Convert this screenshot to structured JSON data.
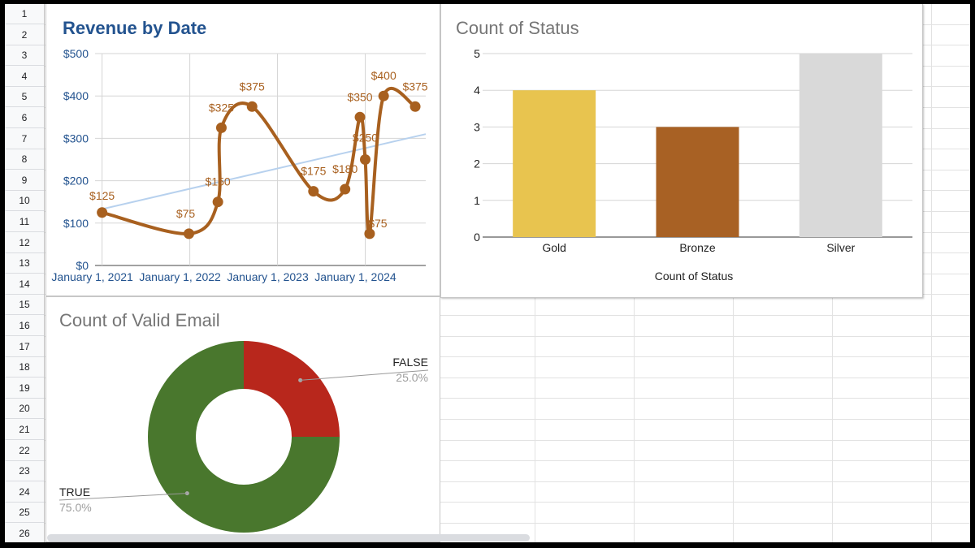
{
  "rows": [
    "1",
    "2",
    "3",
    "4",
    "5",
    "6",
    "7",
    "8",
    "9",
    "10",
    "11",
    "12",
    "13",
    "14",
    "15",
    "16",
    "17",
    "18",
    "19",
    "20",
    "21",
    "22",
    "23",
    "24",
    "25",
    "26"
  ],
  "revenue_chart": {
    "title": "Revenue by Date",
    "chart_data": {
      "type": "line",
      "title": "Revenue by Date",
      "xlabel": "",
      "ylabel": "",
      "x_tick_labels": [
        "January 1, 2021",
        "January 1, 2022",
        "January 1, 2023",
        "January 1, 2024"
      ],
      "y_tick_labels": [
        "$0",
        "$100",
        "$200",
        "$300",
        "$400",
        "$500"
      ],
      "ylim": [
        0,
        500
      ],
      "xlim_years": [
        2020.92,
        2024.69
      ],
      "series": [
        {
          "name": "Revenue",
          "color": "#a8601f",
          "points": [
            {
              "x": 2021.0,
              "y": 125,
              "label": "$125"
            },
            {
              "x": 2021.99,
              "y": 75,
              "label": "$75"
            },
            {
              "x": 2022.32,
              "y": 150,
              "label": "$150"
            },
            {
              "x": 2022.36,
              "y": 325,
              "label": "$325"
            },
            {
              "x": 2022.71,
              "y": 375,
              "label": "$375"
            },
            {
              "x": 2023.41,
              "y": 175,
              "label": "$175"
            },
            {
              "x": 2023.77,
              "y": 180,
              "label": "$180"
            },
            {
              "x": 2023.94,
              "y": 350,
              "label": "$350"
            },
            {
              "x": 2024.0,
              "y": 250,
              "label": "$250"
            },
            {
              "x": 2024.05,
              "y": 75,
              "label": "$75"
            },
            {
              "x": 2024.21,
              "y": 400,
              "label": "$400"
            },
            {
              "x": 2024.57,
              "y": 375,
              "label": "$375"
            }
          ]
        },
        {
          "name": "Trendline",
          "color": "#b7d1ee",
          "points": [
            {
              "x": 2021.0,
              "y": 133
            },
            {
              "x": 2024.69,
              "y": 310
            }
          ]
        }
      ]
    }
  },
  "status_chart": {
    "title": "Count of Status",
    "chart_data": {
      "type": "bar",
      "title": "Count of Status",
      "xlabel": "Count of Status",
      "ylabel": "",
      "categories": [
        "Gold",
        "Bronze",
        "Silver"
      ],
      "values": [
        4,
        3,
        5
      ],
      "colors": [
        "#e8c44f",
        "#a86124",
        "#d9d9d9"
      ],
      "y_tick_labels": [
        "0",
        "1",
        "2",
        "3",
        "4",
        "5"
      ],
      "ylim": [
        0,
        5
      ]
    }
  },
  "email_chart": {
    "title": "Count of Valid Email",
    "chart_data": {
      "type": "pie",
      "title": "Count of Valid Email",
      "donut": true,
      "slices": [
        {
          "label": "FALSE",
          "value": 25.0,
          "percent_label": "25.0%",
          "color": "#b8271c"
        },
        {
          "label": "TRUE",
          "value": 75.0,
          "percent_label": "75.0%",
          "color": "#49772d"
        }
      ]
    }
  }
}
